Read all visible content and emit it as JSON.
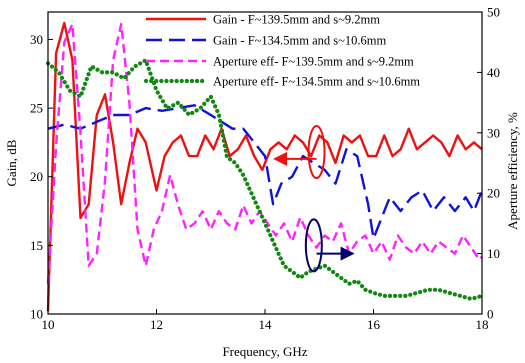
{
  "chart_data": {
    "type": "line",
    "title": "",
    "xlabel": "Frequency, GHz",
    "ylabel_left": "Gain, dB",
    "ylabel_right": "Aperture efficiency, %",
    "xlim": [
      10,
      18
    ],
    "ylim_left": [
      10,
      32
    ],
    "ylim_right": [
      0,
      50
    ],
    "xticks": [
      "10",
      "12",
      "14",
      "16",
      "18"
    ],
    "yticks_left": [
      "10",
      "15",
      "20",
      "25",
      "30"
    ],
    "yticks_right": [
      "0",
      "10",
      "20",
      "30",
      "40",
      "50"
    ],
    "grid": false,
    "legend_position": "top-right",
    "series": [
      {
        "name": "Gain - F~139.5mm and s~9.2mm",
        "axis": "left",
        "color": "#ee1111",
        "style": "solid",
        "x": [
          10.0,
          10.15,
          10.3,
          10.45,
          10.6,
          10.75,
          10.9,
          11.05,
          11.2,
          11.35,
          11.5,
          11.65,
          11.8,
          12.0,
          12.15,
          12.3,
          12.45,
          12.6,
          12.75,
          12.9,
          13.05,
          13.2,
          13.35,
          13.5,
          13.65,
          13.8,
          13.95,
          14.1,
          14.25,
          14.4,
          14.55,
          14.7,
          14.85,
          15.0,
          15.15,
          15.3,
          15.45,
          15.6,
          15.75,
          15.9,
          16.05,
          16.2,
          16.35,
          16.5,
          16.65,
          16.8,
          16.95,
          17.1,
          17.25,
          17.4,
          17.55,
          17.7,
          17.85,
          18.0
        ],
        "values": [
          10.2,
          29.0,
          31.2,
          28.5,
          17.0,
          18.0,
          24.5,
          26.0,
          22.5,
          18.0,
          21.0,
          23.5,
          22.5,
          19.0,
          21.5,
          22.5,
          23.0,
          21.5,
          21.5,
          23.0,
          22.0,
          23.5,
          21.5,
          22.0,
          23.0,
          21.5,
          20.5,
          22.0,
          22.5,
          22.0,
          23.0,
          22.5,
          21.5,
          23.0,
          22.5,
          21.0,
          23.0,
          22.5,
          23.0,
          21.5,
          21.5,
          23.0,
          21.5,
          22.0,
          23.5,
          22.0,
          22.5,
          23.0,
          22.5,
          21.5,
          23.0,
          22.0,
          22.5,
          22.0
        ]
      },
      {
        "name": "Gain - F~134.5mm and s~10.6mm",
        "axis": "left",
        "color": "#1111dd",
        "style": "long-dash",
        "x": [
          10.0,
          10.3,
          10.6,
          10.9,
          11.2,
          11.5,
          11.8,
          12.1,
          12.4,
          12.7,
          13.0,
          13.2,
          13.4,
          13.6,
          13.8,
          14.0,
          14.15,
          14.3,
          14.5,
          14.7,
          14.9,
          15.1,
          15.3,
          15.5,
          15.7,
          15.9,
          16.0,
          16.15,
          16.3,
          16.5,
          16.7,
          16.9,
          17.1,
          17.3,
          17.5,
          17.7,
          17.85,
          18.0
        ],
        "values": [
          23.5,
          23.8,
          23.5,
          24.0,
          24.5,
          24.5,
          25.0,
          24.8,
          25.0,
          25.2,
          24.5,
          24.0,
          23.5,
          23.5,
          22.5,
          21.5,
          18.0,
          19.5,
          20.0,
          21.5,
          21.0,
          20.5,
          19.5,
          22.0,
          21.5,
          18.0,
          15.5,
          17.0,
          18.5,
          17.5,
          18.5,
          19.0,
          17.5,
          18.5,
          17.5,
          18.5,
          17.5,
          19.0
        ]
      },
      {
        "name": "Aperture eff- F~139.5mm and s~9.2mm",
        "axis": "right",
        "color": "#ff22ff",
        "style": "short-dash",
        "x": [
          10.0,
          10.15,
          10.3,
          10.45,
          10.6,
          10.75,
          10.9,
          11.05,
          11.2,
          11.35,
          11.5,
          11.65,
          11.8,
          11.95,
          12.1,
          12.25,
          12.4,
          12.55,
          12.7,
          12.85,
          13.0,
          13.15,
          13.3,
          13.45,
          13.6,
          13.75,
          13.9,
          14.05,
          14.2,
          14.35,
          14.5,
          14.65,
          14.8,
          14.95,
          15.1,
          15.25,
          15.4,
          15.55,
          15.7,
          15.85,
          16.0,
          16.15,
          16.3,
          16.45,
          16.6,
          16.75,
          16.9,
          17.05,
          17.2,
          17.35,
          17.5,
          17.65,
          17.8,
          17.95,
          18.0
        ],
        "values": [
          5.0,
          28.0,
          45.0,
          48.0,
          30.0,
          8.0,
          10.0,
          22.0,
          42.0,
          48.0,
          35.0,
          14.0,
          8.0,
          14.0,
          17.0,
          23.0,
          18.0,
          14.0,
          15.0,
          17.0,
          14.0,
          17.0,
          15.0,
          14.0,
          18.0,
          15.0,
          17.0,
          15.0,
          13.0,
          15.0,
          12.0,
          16.0,
          13.0,
          11.0,
          13.0,
          12.0,
          15.0,
          10.0,
          12.0,
          13.0,
          10.0,
          12.0,
          9.0,
          13.0,
          11.0,
          10.0,
          12.0,
          10.0,
          12.0,
          11.0,
          10.0,
          13.0,
          11.0,
          9.0,
          9.5
        ]
      },
      {
        "name": "Aperture eff- F~134.5mm and s~10.6mm",
        "axis": "right",
        "color": "#118811",
        "style": "dotted",
        "x": [
          10.0,
          10.2,
          10.4,
          10.6,
          10.8,
          11.0,
          11.2,
          11.4,
          11.6,
          11.8,
          12.0,
          12.2,
          12.4,
          12.6,
          12.8,
          13.0,
          13.15,
          13.3,
          13.45,
          13.6,
          13.75,
          13.9,
          14.05,
          14.2,
          14.35,
          14.5,
          14.65,
          14.8,
          14.95,
          15.1,
          15.25,
          15.4,
          15.55,
          15.7,
          15.85,
          16.0,
          16.2,
          16.4,
          16.6,
          16.8,
          17.0,
          17.2,
          17.4,
          17.6,
          17.8,
          18.0
        ],
        "values": [
          41.5,
          40.0,
          37.0,
          36.0,
          41.0,
          40.0,
          40.0,
          39.0,
          41.0,
          42.0,
          37.0,
          34.0,
          35.0,
          33.0,
          34.0,
          36.0,
          33.0,
          26.0,
          25.0,
          23.0,
          20.0,
          17.0,
          14.0,
          11.0,
          8.0,
          7.0,
          6.0,
          7.0,
          7.5,
          8.0,
          7.0,
          6.0,
          5.0,
          5.5,
          4.0,
          3.5,
          3.0,
          3.0,
          3.0,
          3.5,
          4.0,
          4.0,
          3.5,
          3.0,
          2.5,
          3.0
        ]
      }
    ],
    "annotations": [
      {
        "type": "ellipse",
        "color": "#ee1111",
        "x": 14.95,
        "y_left": 21.8
      },
      {
        "type": "arrow",
        "color": "#ee1111",
        "from": [
          14.95,
          21.3
        ],
        "to": [
          14.2,
          21.3
        ]
      },
      {
        "type": "ellipse",
        "color": "#000066",
        "x": 14.9,
        "y_left": 15.0
      },
      {
        "type": "arrow",
        "color": "#000066",
        "from": [
          14.95,
          14.4
        ],
        "to": [
          15.6,
          14.4
        ]
      }
    ]
  }
}
